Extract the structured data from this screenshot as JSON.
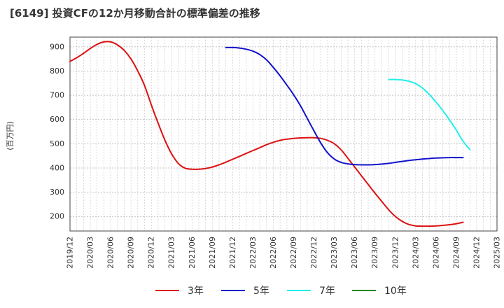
{
  "title": "[6149]  投資CFの12か月移動合計の標準偏差の推移",
  "chart_data": {
    "type": "line",
    "title": "[6149]  投資CFの12か月移動合計の標準偏差の推移",
    "ylabel": "(百万円)",
    "xlabel": "",
    "ylim": [
      140,
      940
    ],
    "yticks": [
      200,
      300,
      400,
      500,
      600,
      700,
      800,
      900
    ],
    "x_ticks": [
      "2019/12",
      "2020/03",
      "2020/06",
      "2020/09",
      "2020/12",
      "2021/03",
      "2021/06",
      "2021/09",
      "2021/12",
      "2022/03",
      "2022/06",
      "2022/09",
      "2022/12",
      "2023/03",
      "2023/06",
      "2023/09",
      "2023/12",
      "2024/03",
      "2024/06",
      "2024/09",
      "2024/12",
      "2025/03"
    ],
    "grid": true,
    "legend_position": "bottom",
    "series": [
      {
        "name": "3年",
        "color": "#dd1111",
        "points": [
          [
            "2019/12",
            840
          ],
          [
            "2020/01",
            855
          ],
          [
            "2020/02",
            873
          ],
          [
            "2020/03",
            893
          ],
          [
            "2020/04",
            910
          ],
          [
            "2020/05",
            920
          ],
          [
            "2020/06",
            920
          ],
          [
            "2020/07",
            908
          ],
          [
            "2020/08",
            885
          ],
          [
            "2020/09",
            850
          ],
          [
            "2020/10",
            800
          ],
          [
            "2020/11",
            740
          ],
          [
            "2020/12",
            660
          ],
          [
            "2021/01",
            585
          ],
          [
            "2021/02",
            515
          ],
          [
            "2021/03",
            458
          ],
          [
            "2021/04",
            418
          ],
          [
            "2021/05",
            399
          ],
          [
            "2021/06",
            395
          ],
          [
            "2021/07",
            395
          ],
          [
            "2021/08",
            398
          ],
          [
            "2021/09",
            404
          ],
          [
            "2021/10",
            413
          ],
          [
            "2021/11",
            424
          ],
          [
            "2021/12",
            436
          ],
          [
            "2022/01",
            448
          ],
          [
            "2022/02",
            460
          ],
          [
            "2022/03",
            472
          ],
          [
            "2022/04",
            484
          ],
          [
            "2022/05",
            496
          ],
          [
            "2022/06",
            506
          ],
          [
            "2022/07",
            514
          ],
          [
            "2022/08",
            519
          ],
          [
            "2022/09",
            522
          ],
          [
            "2022/10",
            524
          ],
          [
            "2022/11",
            525
          ],
          [
            "2022/12",
            525
          ],
          [
            "2023/01",
            522
          ],
          [
            "2023/02",
            514
          ],
          [
            "2023/03",
            500
          ],
          [
            "2023/04",
            475
          ],
          [
            "2023/05",
            440
          ],
          [
            "2023/06",
            404
          ],
          [
            "2023/07",
            368
          ],
          [
            "2023/08",
            332
          ],
          [
            "2023/09",
            296
          ],
          [
            "2023/10",
            262
          ],
          [
            "2023/11",
            228
          ],
          [
            "2023/12",
            200
          ],
          [
            "2024/01",
            180
          ],
          [
            "2024/02",
            167
          ],
          [
            "2024/03",
            161
          ],
          [
            "2024/04",
            160
          ],
          [
            "2024/05",
            160
          ],
          [
            "2024/06",
            161
          ],
          [
            "2024/07",
            163
          ],
          [
            "2024/08",
            166
          ],
          [
            "2024/09",
            170
          ],
          [
            "2024/10",
            176
          ]
        ]
      },
      {
        "name": "5年",
        "color": "#1111cc",
        "points": [
          [
            "2021/11",
            897
          ],
          [
            "2021/12",
            897
          ],
          [
            "2022/01",
            895
          ],
          [
            "2022/02",
            890
          ],
          [
            "2022/03",
            882
          ],
          [
            "2022/04",
            868
          ],
          [
            "2022/05",
            846
          ],
          [
            "2022/06",
            815
          ],
          [
            "2022/07",
            780
          ],
          [
            "2022/08",
            742
          ],
          [
            "2022/09",
            702
          ],
          [
            "2022/10",
            657
          ],
          [
            "2022/11",
            605
          ],
          [
            "2022/12",
            553
          ],
          [
            "2023/01",
            503
          ],
          [
            "2023/02",
            463
          ],
          [
            "2023/03",
            437
          ],
          [
            "2023/04",
            423
          ],
          [
            "2023/05",
            417
          ],
          [
            "2023/06",
            414
          ],
          [
            "2023/07",
            413
          ],
          [
            "2023/08",
            413
          ],
          [
            "2023/09",
            414
          ],
          [
            "2023/10",
            416
          ],
          [
            "2023/11",
            419
          ],
          [
            "2023/12",
            423
          ],
          [
            "2024/01",
            427
          ],
          [
            "2024/02",
            431
          ],
          [
            "2024/03",
            434
          ],
          [
            "2024/04",
            437
          ],
          [
            "2024/05",
            439
          ],
          [
            "2024/06",
            441
          ],
          [
            "2024/07",
            442
          ],
          [
            "2024/08",
            443
          ],
          [
            "2024/09",
            443
          ],
          [
            "2024/10",
            443
          ]
        ]
      },
      {
        "name": "7年",
        "color": "#22eeee",
        "points": [
          [
            "2023/11",
            765
          ],
          [
            "2023/12",
            765
          ],
          [
            "2024/01",
            763
          ],
          [
            "2024/02",
            758
          ],
          [
            "2024/03",
            748
          ],
          [
            "2024/04",
            730
          ],
          [
            "2024/05",
            704
          ],
          [
            "2024/06",
            672
          ],
          [
            "2024/07",
            637
          ],
          [
            "2024/08",
            598
          ],
          [
            "2024/09",
            556
          ],
          [
            "2024/10",
            510
          ],
          [
            "2024/11",
            476
          ]
        ]
      },
      {
        "name": "10年",
        "color": "#228822",
        "points": []
      }
    ]
  }
}
